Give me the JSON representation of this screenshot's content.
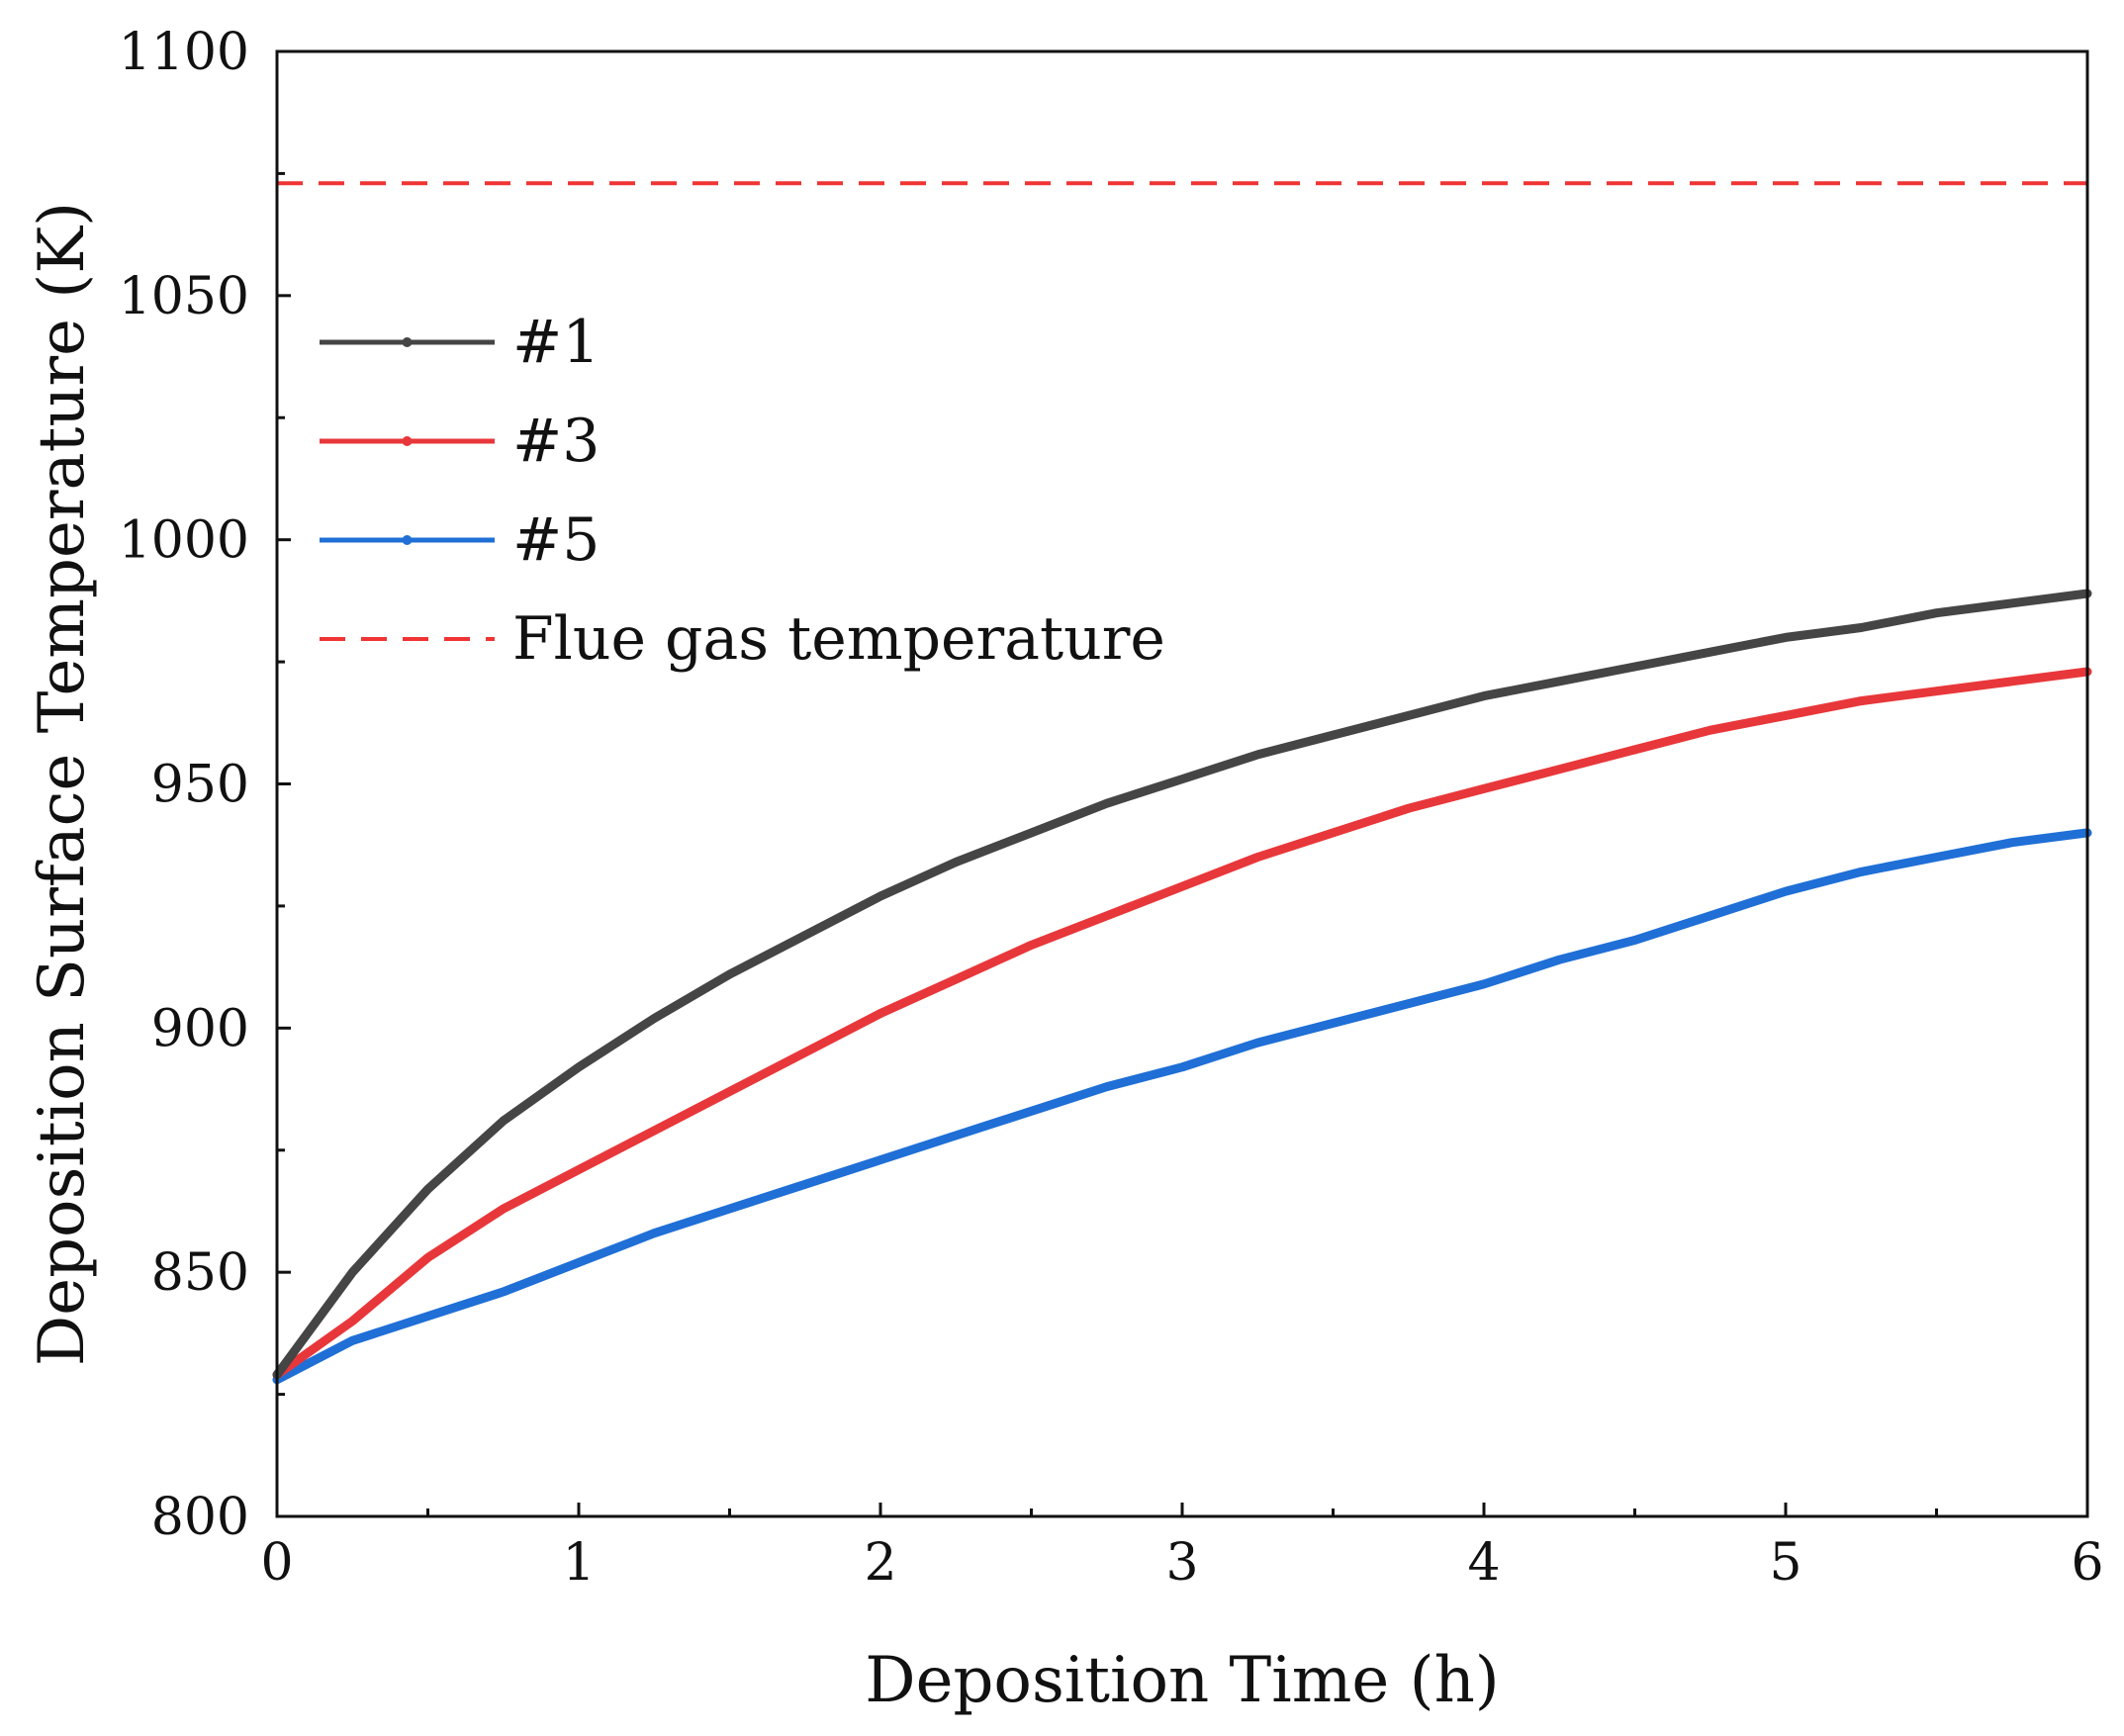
{
  "chart_data": {
    "type": "line",
    "title": "",
    "xlabel": "Deposition Time (h)",
    "ylabel": "Deposition Surface Temperature (K)",
    "xlim": [
      0,
      6
    ],
    "ylim": [
      800,
      1100
    ],
    "xticks": [
      0,
      1,
      2,
      3,
      4,
      5,
      6
    ],
    "xtick_labels": [
      "0",
      "1",
      "2",
      "3",
      "4",
      "5",
      "6"
    ],
    "yticks": [
      800,
      850,
      900,
      950,
      1000,
      1050,
      1100
    ],
    "ytick_labels": [
      "800",
      "850",
      "900",
      "950",
      "1000",
      "1050",
      "1100"
    ],
    "grid": false,
    "legend_position": "upper-left",
    "x": [
      0,
      0.25,
      0.5,
      0.75,
      1,
      1.25,
      1.5,
      1.75,
      2,
      2.25,
      2.5,
      2.75,
      3,
      3.25,
      3.5,
      3.75,
      4,
      4.25,
      4.5,
      4.75,
      5,
      5.25,
      5.5,
      5.75,
      6
    ],
    "series": [
      {
        "name": "#1",
        "color": "#454545",
        "style": "solid",
        "values": [
          829,
          850,
          867,
          881,
          892,
          902,
          911,
          919,
          927,
          934,
          940,
          946,
          951,
          956,
          960,
          964,
          968,
          971,
          974,
          977,
          980,
          982,
          985,
          987,
          989
        ]
      },
      {
        "name": "#3",
        "color": "#e8373a",
        "style": "solid",
        "values": [
          829,
          840,
          853,
          863,
          871,
          879,
          887,
          895,
          903,
          910,
          917,
          923,
          929,
          935,
          940,
          945,
          949,
          953,
          957,
          961,
          964,
          967,
          969,
          971,
          973
        ]
      },
      {
        "name": "#5",
        "color": "#1f6fd6",
        "style": "solid",
        "values": [
          828,
          836,
          841,
          846,
          852,
          858,
          863,
          868,
          873,
          878,
          883,
          888,
          892,
          897,
          901,
          905,
          909,
          914,
          918,
          923,
          928,
          932,
          935,
          938,
          940
        ]
      },
      {
        "name": "Flue gas temperature",
        "color": "#f03434",
        "style": "dashed",
        "values": [
          1073,
          1073,
          1073,
          1073,
          1073,
          1073,
          1073,
          1073,
          1073,
          1073,
          1073,
          1073,
          1073,
          1073,
          1073,
          1073,
          1073,
          1073,
          1073,
          1073,
          1073,
          1073,
          1073,
          1073,
          1073
        ]
      }
    ]
  }
}
